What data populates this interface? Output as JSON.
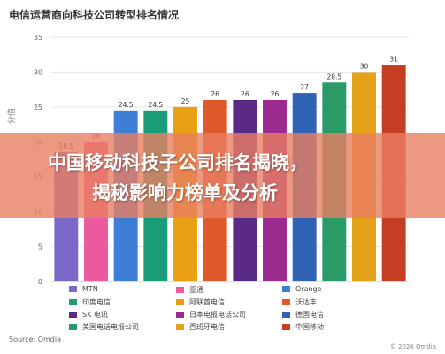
{
  "chart_data": {
    "type": "bar",
    "title": "电信运营商向科技公司转型排名情况",
    "ylabel": "分值",
    "xlabel": "",
    "ylim": [
      0,
      35
    ],
    "yticks": [
      0,
      5,
      10,
      15,
      20,
      25,
      30,
      35
    ],
    "grid": true,
    "legend_position": "bottom",
    "categories": [
      "MTN",
      "亚通",
      "Orange",
      "印度电信",
      "阿联酋电信",
      "沃达丰",
      "SK 电讯",
      "日本电报电话公司",
      "德国电信",
      "美国电话电报公司",
      "西班牙电信",
      "中国移动"
    ],
    "values": [
      18.5,
      20,
      24.5,
      24.5,
      25,
      26,
      26,
      26,
      27,
      28.5,
      30,
      31
    ],
    "value_labels": [
      "18.5",
      "20",
      "24.5",
      "24.5",
      "25",
      "26",
      "26",
      "26",
      "27",
      "28.5",
      "30",
      "31"
    ],
    "colors": [
      "#7b68c6",
      "#ea5a9c",
      "#3d7fd6",
      "#1b9e77",
      "#e8a012",
      "#e0592a",
      "#5b2a86",
      "#9c2b8f",
      "#2f63b3",
      "#2a9a68",
      "#e3a21a",
      "#c63d24"
    ]
  },
  "banner": {
    "line1": "中国移动科技子公司排名揭晓，",
    "line2": "揭秘影响力榜单及分析"
  },
  "footer": {
    "source": "Source: Omdia",
    "copyright": "© 2024 Omdia"
  }
}
